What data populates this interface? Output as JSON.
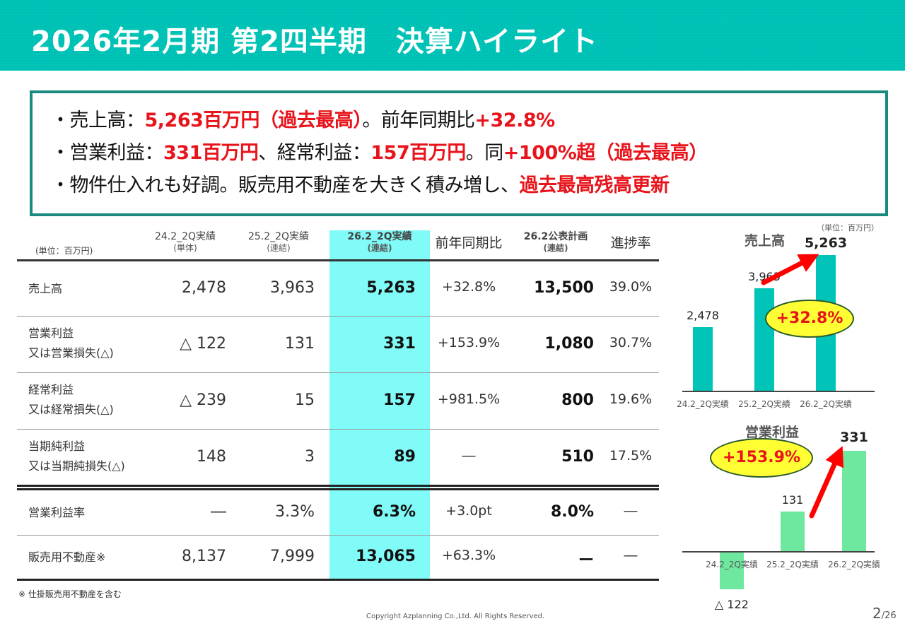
{
  "title": "2026年2月期 第2四半期　決算ハイライト",
  "summary": {
    "line1": {
      "a": "・売上高：",
      "b": "5,263百万円（過去最高）",
      "c": "。前年同期比",
      "d": "+32.8%"
    },
    "line2": {
      "a": "・営業利益：",
      "b": "331百万円",
      "c": "、経常利益：",
      "d": "157百万円",
      "e": "。同",
      "f": "+100%超（過去最高）"
    },
    "line3": {
      "a": "・物件仕入れも好調。販売用不動産を大きく積み増し、",
      "b": "過去最高残高更新"
    }
  },
  "table": {
    "unit": "(単位：百万円)",
    "headers": [
      {
        "main": "24.2_2Q実績",
        "sub": "(単体)"
      },
      {
        "main": "25.2_2Q実績",
        "sub": "(連結)"
      },
      {
        "main": "26.2_2Q実績",
        "sub": "(連結)"
      },
      {
        "main": "前年同期比",
        "sub": ""
      },
      {
        "main": "26.2公表計画",
        "sub": "(連結)"
      },
      {
        "main": "進捗率",
        "sub": ""
      }
    ],
    "rows": [
      {
        "l1": "売上高",
        "l2": "",
        "v": [
          "2,478",
          "3,963",
          "5,263",
          "+32.8%",
          "13,500",
          "39.0%"
        ]
      },
      {
        "l1": "営業利益",
        "l2": "又は営業損失(△)",
        "v": [
          "△ 122",
          "131",
          "331",
          "+153.9%",
          "1,080",
          "30.7%"
        ]
      },
      {
        "l1": "経常利益",
        "l2": "又は経常損失(△)",
        "v": [
          "△ 239",
          "15",
          "157",
          "+981.5%",
          "800",
          "19.6%"
        ]
      },
      {
        "l1": "当期純利益",
        "l2": "又は当期純損失(△)",
        "v": [
          "148",
          "3",
          "89",
          "―",
          "510",
          "17.5%"
        ]
      },
      {
        "l1": "営業利益率",
        "l2": "",
        "v": [
          "―",
          "3.3%",
          "6.3%",
          "+3.0pt",
          "8.0%",
          "―"
        ]
      },
      {
        "l1": "販売用不動産※",
        "l2": "",
        "v": [
          "8,137",
          "7,999",
          "13,065",
          "+63.3%",
          "ー",
          "―"
        ]
      }
    ],
    "footnote": "※ 仕掛販売用不動産を含む"
  },
  "chart_data": [
    {
      "type": "bar",
      "title": "売上高",
      "unit": "（単位：百万円）",
      "categories": [
        "24.2_2Q実績",
        "25.2_2Q実績",
        "26.2_2Q実績"
      ],
      "values": [
        2478,
        3963,
        5263
      ],
      "labels": [
        "2,478",
        "3,963",
        "5,263"
      ],
      "annotation": "+32.8%",
      "color": "#00c4b8"
    },
    {
      "type": "bar",
      "title": "営業利益",
      "categories": [
        "24.2_2Q実績",
        "25.2_2Q実績",
        "26.2_2Q実績"
      ],
      "values": [
        -122,
        131,
        331
      ],
      "labels": [
        "△ 122",
        "131",
        "331"
      ],
      "annotation": "+153.9%",
      "color": "#6ee89e"
    }
  ],
  "footer": {
    "copyright": "Copyright Azplanning Co.,Ltd. All Rights Reserved.",
    "page": "2",
    "total": "/26"
  }
}
